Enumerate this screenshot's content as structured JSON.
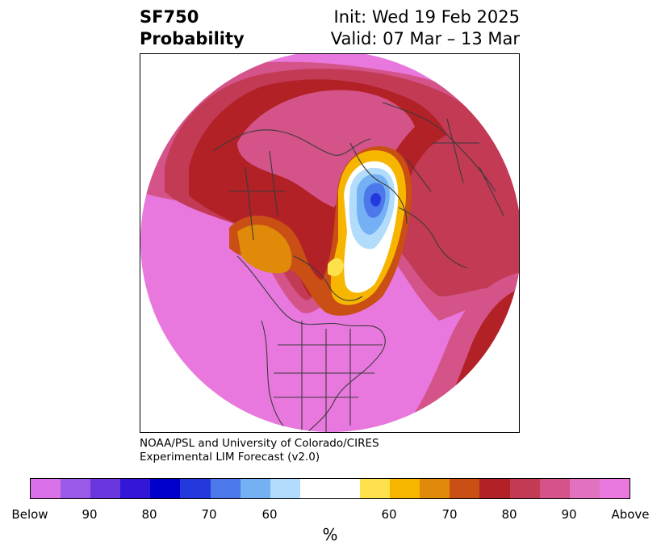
{
  "title": {
    "left_line1": "SF750",
    "left_line2": "Probability",
    "right_line1": "Init: Wed 19 Feb 2025",
    "right_line2": "Valid: 07 Mar – 13 Mar"
  },
  "credit": {
    "line1": "NOAA/PSL and University of Colorado/CIRES",
    "line2": "Experimental LIM Forecast (v2.0)"
  },
  "colorbar": {
    "colors": [
      "#d971e8",
      "#9a59e6",
      "#6c36de",
      "#3316d8",
      "#0000cc",
      "#2338dd",
      "#4c78ea",
      "#74b1f4",
      "#b1dcfc",
      "#ffffff",
      "#fee14d",
      "#f6b600",
      "#e08a0a",
      "#c94f14",
      "#b22126",
      "#c23a54",
      "#d45388",
      "#e072c0",
      "#e878de"
    ],
    "ticks": [
      "Below",
      "90",
      "80",
      "70",
      "60",
      "60",
      "70",
      "80",
      "90",
      "Above"
    ],
    "unit": "%"
  },
  "map": {
    "projection": "north-polar stereographic",
    "palette": {
      "above_max": "#e878de",
      "above_90": "#d45388",
      "above_80": "#c23a54",
      "above_70": "#b22126",
      "above_60": "#c94f14",
      "above_55": "#e08a0a",
      "above_50": "#f6b600",
      "near": "#fee14d",
      "neutral": "#ffffff",
      "below_60": "#b1dcfc",
      "below_70": "#74b1f4",
      "below_80": "#4c78ea",
      "below_90": "#2338dd",
      "coast": "#3a3a3a"
    }
  }
}
